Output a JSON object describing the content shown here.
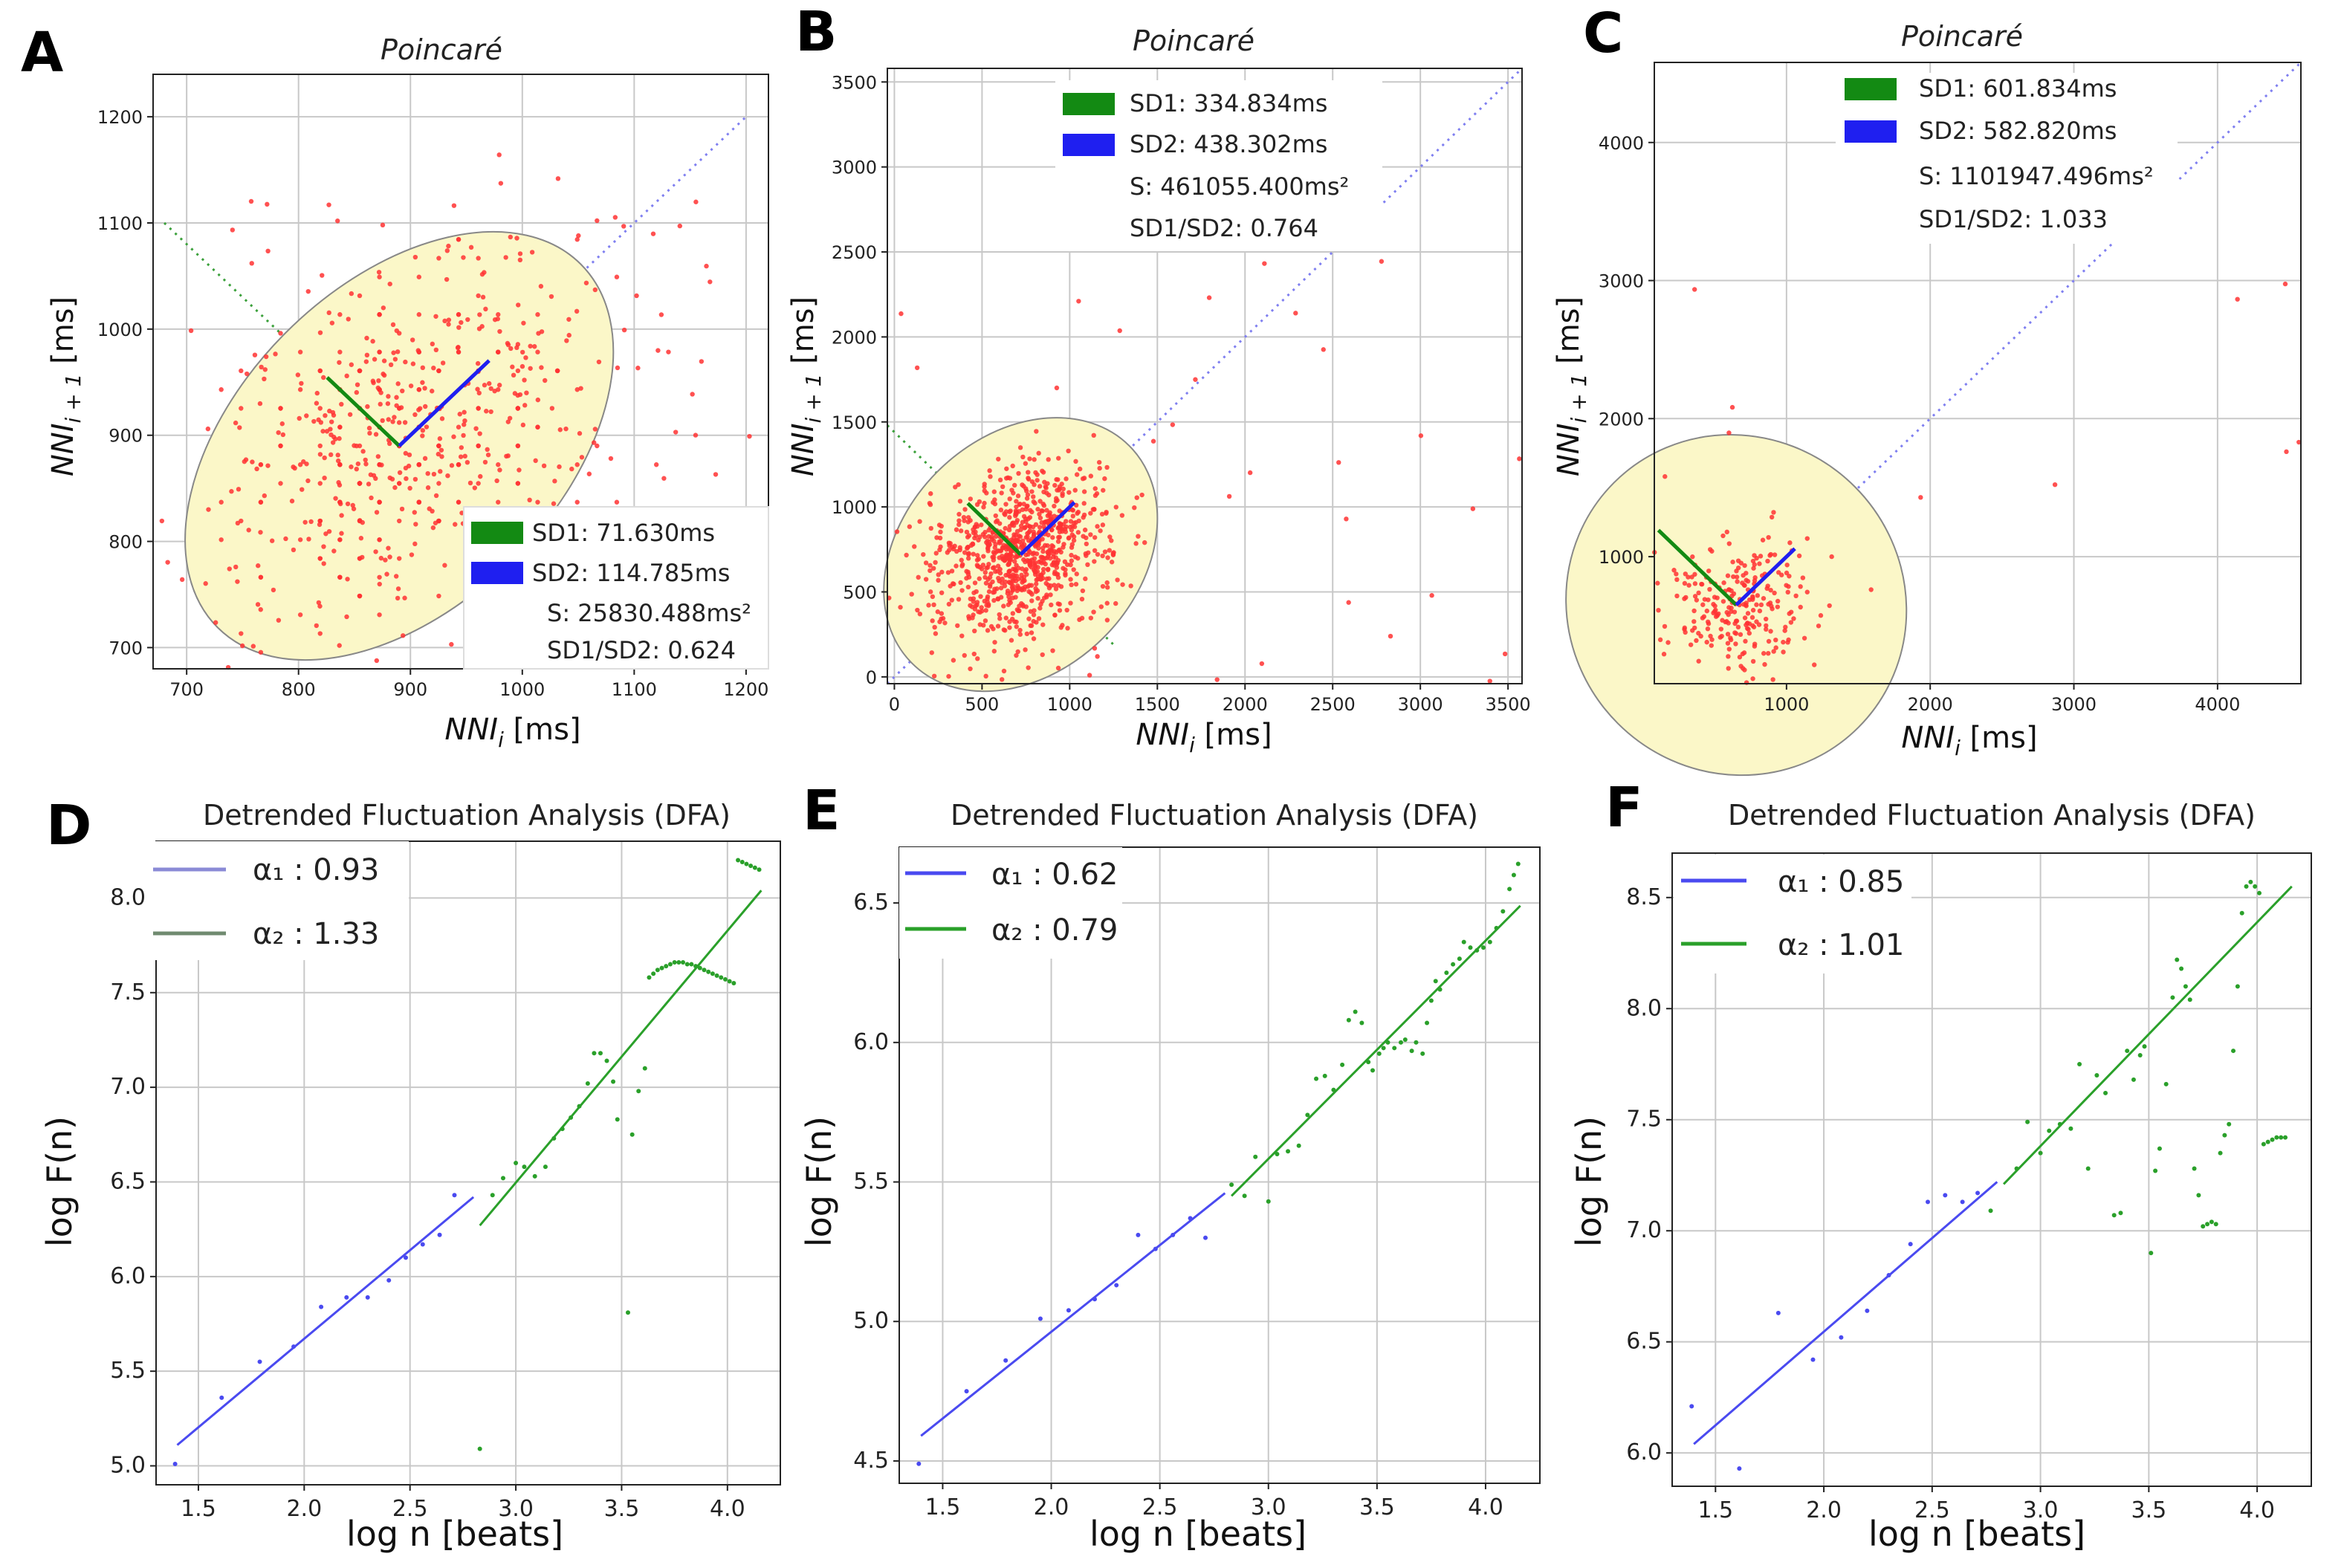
{
  "figure": {
    "title_poincare": "Poincaré",
    "title_dfa": "Detrended Fluctuation Analysis (DFA)"
  },
  "colors": {
    "points": "#ff3333",
    "ellipse": "#fbf7c8",
    "sd1": "#138a13",
    "sd2": "#1f1ff0",
    "dfa_blue": "#4a4af0",
    "dfa_green": "#2aa02a",
    "grid": "#c8c8c8"
  },
  "chart_data": [
    {
      "panel": "A",
      "type": "scatter",
      "title": "Poincaré",
      "xlabel": "NNi [ms]",
      "ylabel": "NNi+1 [ms]",
      "xlim": [
        670,
        1220
      ],
      "ylim": [
        680,
        1240
      ],
      "xticks": [
        700,
        800,
        900,
        1000,
        1100,
        1200
      ],
      "yticks": [
        700,
        800,
        900,
        1000,
        1100,
        1200
      ],
      "center": [
        890,
        890
      ],
      "sd1": 71.63,
      "sd2": 114.785,
      "points_desc": "cluster of ~600 RR-interval pairs centred near 890 ms",
      "legend": {
        "sd1": "SD1: 71.630ms",
        "sd2": "SD2: 114.785ms",
        "s": "S: 25830.488ms²",
        "ratio": "SD1/SD2: 0.624"
      }
    },
    {
      "panel": "B",
      "type": "scatter",
      "title": "Poincaré",
      "xlabel": "NNi [ms]",
      "ylabel": "NNi+1 [ms]",
      "xlim": [
        -40,
        3580
      ],
      "ylim": [
        -40,
        3580
      ],
      "xticks": [
        0,
        500,
        1000,
        1500,
        2000,
        2500,
        3000,
        3500
      ],
      "yticks": [
        0,
        500,
        1000,
        1500,
        2000,
        2500,
        3000,
        3500
      ],
      "center": [
        720,
        720
      ],
      "sd1": 334.834,
      "sd2": 438.302,
      "legend": {
        "sd1": "SD1: 334.834ms",
        "sd2": "SD2: 438.302ms",
        "s": "S: 461055.400ms²",
        "ratio": "SD1/SD2: 0.764"
      }
    },
    {
      "panel": "C",
      "type": "scatter",
      "title": "Poincaré",
      "xlabel": "NNi [ms]",
      "ylabel": "NNi+1 [ms]",
      "xlim": [
        80,
        4580
      ],
      "ylim": [
        80,
        4580
      ],
      "xticks": [
        1000,
        2000,
        3000,
        4000
      ],
      "yticks": [
        1000,
        2000,
        3000,
        4000
      ],
      "center": [
        650,
        650
      ],
      "sd1": 601.834,
      "sd2": 582.82,
      "legend": {
        "sd1": "SD1: 601.834ms",
        "sd2": "SD2: 582.820ms",
        "s": "S: 1101947.496ms²",
        "ratio": "SD1/SD2: 1.033"
      }
    },
    {
      "panel": "D",
      "type": "line",
      "title": "Detrended Fluctuation Analysis (DFA)",
      "xlabel": "log n [beats]",
      "ylabel": "log F(n)",
      "xlim": [
        1.3,
        4.25
      ],
      "ylim": [
        4.9,
        8.3
      ],
      "xticks": [
        1.5,
        2.0,
        2.5,
        3.0,
        3.5,
        4.0
      ],
      "yticks": [
        5.0,
        5.5,
        6.0,
        6.5,
        7.0,
        7.5,
        8.0
      ],
      "fit1": {
        "x": [
          1.4,
          2.8
        ],
        "y": [
          5.11,
          6.42
        ]
      },
      "fit2": {
        "x": [
          2.83,
          4.16
        ],
        "y": [
          6.27,
          8.04
        ]
      },
      "points1": [
        [
          1.39,
          5.01
        ],
        [
          1.61,
          5.36
        ],
        [
          1.79,
          5.55
        ],
        [
          1.95,
          5.63
        ],
        [
          2.08,
          5.84
        ],
        [
          2.2,
          5.89
        ],
        [
          2.3,
          5.89
        ],
        [
          2.4,
          5.98
        ],
        [
          2.48,
          6.1
        ],
        [
          2.56,
          6.17
        ],
        [
          2.64,
          6.22
        ],
        [
          2.71,
          6.43
        ]
      ],
      "points2": [
        [
          2.83,
          5.09
        ],
        [
          2.89,
          6.43
        ],
        [
          2.94,
          6.52
        ],
        [
          3.0,
          6.6
        ],
        [
          3.04,
          6.58
        ],
        [
          3.09,
          6.53
        ],
        [
          3.14,
          6.58
        ],
        [
          3.18,
          6.73
        ],
        [
          3.22,
          6.78
        ],
        [
          3.26,
          6.84
        ],
        [
          3.3,
          6.9
        ],
        [
          3.34,
          7.02
        ],
        [
          3.37,
          7.18
        ],
        [
          3.4,
          7.18
        ],
        [
          3.43,
          7.14
        ],
        [
          3.46,
          7.03
        ],
        [
          3.48,
          6.83
        ],
        [
          3.53,
          5.81
        ],
        [
          3.55,
          6.75
        ],
        [
          3.58,
          6.98
        ],
        [
          3.61,
          7.1
        ],
        [
          3.63,
          7.58
        ],
        [
          3.65,
          7.6
        ],
        [
          3.67,
          7.62
        ],
        [
          3.69,
          7.63
        ],
        [
          3.71,
          7.64
        ],
        [
          3.73,
          7.65
        ],
        [
          3.75,
          7.66
        ],
        [
          3.77,
          7.66
        ],
        [
          3.79,
          7.66
        ],
        [
          3.81,
          7.65
        ],
        [
          3.83,
          7.65
        ],
        [
          3.85,
          7.64
        ],
        [
          3.87,
          7.63
        ],
        [
          3.89,
          7.62
        ],
        [
          3.91,
          7.61
        ],
        [
          3.93,
          7.6
        ],
        [
          3.95,
          7.59
        ],
        [
          3.97,
          7.58
        ],
        [
          3.99,
          7.57
        ],
        [
          4.01,
          7.56
        ],
        [
          4.03,
          7.55
        ],
        [
          4.05,
          8.2
        ],
        [
          4.07,
          8.19
        ],
        [
          4.09,
          8.18
        ],
        [
          4.11,
          8.17
        ],
        [
          4.13,
          8.16
        ],
        [
          4.15,
          8.15
        ]
      ],
      "legend": {
        "a1": "α₁ : 0.93",
        "a2": "α₂ : 1.33"
      }
    },
    {
      "panel": "E",
      "type": "line",
      "title": "Detrended Fluctuation Analysis (DFA)",
      "xlabel": "log n [beats]",
      "ylabel": "log F(n)",
      "xlim": [
        1.3,
        4.25
      ],
      "ylim": [
        4.42,
        6.7
      ],
      "xticks": [
        1.5,
        2.0,
        2.5,
        3.0,
        3.5,
        4.0
      ],
      "yticks": [
        4.5,
        5.0,
        5.5,
        6.0,
        6.5
      ],
      "fit1": {
        "x": [
          1.4,
          2.8
        ],
        "y": [
          4.59,
          5.46
        ]
      },
      "fit2": {
        "x": [
          2.83,
          4.16
        ],
        "y": [
          5.45,
          6.49
        ]
      },
      "points1": [
        [
          1.39,
          4.49
        ],
        [
          1.61,
          4.75
        ],
        [
          1.79,
          4.86
        ],
        [
          1.95,
          5.01
        ],
        [
          2.08,
          5.04
        ],
        [
          2.2,
          5.08
        ],
        [
          2.3,
          5.13
        ],
        [
          2.4,
          5.31
        ],
        [
          2.48,
          5.26
        ],
        [
          2.56,
          5.31
        ],
        [
          2.64,
          5.37
        ],
        [
          2.71,
          5.3
        ]
      ],
      "points2": [
        [
          2.83,
          5.49
        ],
        [
          2.89,
          5.45
        ],
        [
          2.94,
          5.59
        ],
        [
          3.0,
          5.43
        ],
        [
          3.04,
          5.6
        ],
        [
          3.09,
          5.61
        ],
        [
          3.14,
          5.63
        ],
        [
          3.18,
          5.74
        ],
        [
          3.22,
          5.87
        ],
        [
          3.26,
          5.88
        ],
        [
          3.3,
          5.83
        ],
        [
          3.34,
          5.92
        ],
        [
          3.37,
          6.08
        ],
        [
          3.4,
          6.11
        ],
        [
          3.43,
          6.07
        ],
        [
          3.46,
          5.93
        ],
        [
          3.48,
          5.9
        ],
        [
          3.51,
          5.96
        ],
        [
          3.53,
          5.98
        ],
        [
          3.55,
          6.0
        ],
        [
          3.58,
          5.98
        ],
        [
          3.61,
          6.0
        ],
        [
          3.63,
          6.01
        ],
        [
          3.66,
          5.97
        ],
        [
          3.68,
          6.0
        ],
        [
          3.71,
          5.96
        ],
        [
          3.73,
          6.07
        ],
        [
          3.75,
          6.15
        ],
        [
          3.77,
          6.22
        ],
        [
          3.79,
          6.19
        ],
        [
          3.82,
          6.25
        ],
        [
          3.85,
          6.28
        ],
        [
          3.88,
          6.3
        ],
        [
          3.9,
          6.36
        ],
        [
          3.93,
          6.34
        ],
        [
          3.96,
          6.33
        ],
        [
          3.99,
          6.34
        ],
        [
          4.02,
          6.36
        ],
        [
          4.05,
          6.41
        ],
        [
          4.08,
          6.47
        ],
        [
          4.11,
          6.55
        ],
        [
          4.13,
          6.6
        ],
        [
          4.15,
          6.64
        ]
      ],
      "legend": {
        "a1": "α₁ : 0.62",
        "a2": "α₂ : 0.79"
      }
    },
    {
      "panel": "F",
      "type": "line",
      "title": "Detrended Fluctuation Analysis (DFA)",
      "xlabel": "log n [beats]",
      "ylabel": "log F(n)",
      "xlim": [
        1.3,
        4.25
      ],
      "ylim": [
        5.85,
        8.7
      ],
      "xticks": [
        1.5,
        2.0,
        2.5,
        3.0,
        3.5,
        4.0
      ],
      "yticks": [
        6.0,
        6.5,
        7.0,
        7.5,
        8.0,
        8.5
      ],
      "fit1": {
        "x": [
          1.4,
          2.8
        ],
        "y": [
          6.04,
          7.22
        ]
      },
      "fit2": {
        "x": [
          2.83,
          4.16
        ],
        "y": [
          7.21,
          8.55
        ]
      },
      "points1": [
        [
          1.39,
          6.21
        ],
        [
          1.61,
          5.93
        ],
        [
          1.79,
          6.63
        ],
        [
          1.95,
          6.42
        ],
        [
          2.08,
          6.52
        ],
        [
          2.2,
          6.64
        ],
        [
          2.3,
          6.8
        ],
        [
          2.4,
          6.94
        ],
        [
          2.48,
          7.13
        ],
        [
          2.56,
          7.16
        ],
        [
          2.64,
          7.13
        ],
        [
          2.71,
          7.17
        ]
      ],
      "points2": [
        [
          2.77,
          7.09
        ],
        [
          2.89,
          7.28
        ],
        [
          2.94,
          7.49
        ],
        [
          3.0,
          7.35
        ],
        [
          3.04,
          7.45
        ],
        [
          3.09,
          7.48
        ],
        [
          3.14,
          7.46
        ],
        [
          3.18,
          7.75
        ],
        [
          3.22,
          7.28
        ],
        [
          3.26,
          7.7
        ],
        [
          3.3,
          7.62
        ],
        [
          3.34,
          7.07
        ],
        [
          3.37,
          7.08
        ],
        [
          3.4,
          7.81
        ],
        [
          3.43,
          7.68
        ],
        [
          3.46,
          7.79
        ],
        [
          3.48,
          7.83
        ],
        [
          3.51,
          6.9
        ],
        [
          3.53,
          7.27
        ],
        [
          3.55,
          7.37
        ],
        [
          3.58,
          7.66
        ],
        [
          3.61,
          8.05
        ],
        [
          3.63,
          8.22
        ],
        [
          3.65,
          8.18
        ],
        [
          3.67,
          8.1
        ],
        [
          3.69,
          8.04
        ],
        [
          3.71,
          7.28
        ],
        [
          3.73,
          7.16
        ],
        [
          3.75,
          7.02
        ],
        [
          3.77,
          7.03
        ],
        [
          3.79,
          7.04
        ],
        [
          3.81,
          7.03
        ],
        [
          3.83,
          7.35
        ],
        [
          3.85,
          7.43
        ],
        [
          3.87,
          7.48
        ],
        [
          3.89,
          7.81
        ],
        [
          3.91,
          8.1
        ],
        [
          3.93,
          8.43
        ],
        [
          3.95,
          8.55
        ],
        [
          3.97,
          8.57
        ],
        [
          3.99,
          8.55
        ],
        [
          4.01,
          8.52
        ],
        [
          4.03,
          7.39
        ],
        [
          4.05,
          7.4
        ],
        [
          4.07,
          7.41
        ],
        [
          4.09,
          7.42
        ],
        [
          4.11,
          7.42
        ],
        [
          4.13,
          7.42
        ]
      ],
      "legend": {
        "a1": "α₁ : 0.85",
        "a2": "α₂ : 1.01"
      }
    }
  ]
}
